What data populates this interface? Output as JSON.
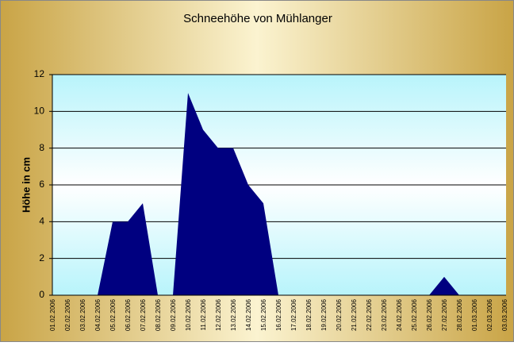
{
  "chart_data": {
    "type": "area",
    "title": "Schneehöhe von Mühlanger",
    "y_label": "Höhe in cm",
    "categories": [
      "01.02.2006",
      "02.02.2006",
      "03.02.2006",
      "04.02.2006",
      "05.02.2006",
      "06.02.2006",
      "07.02.2006",
      "08.02.2006",
      "09.02.2006",
      "10.02.2006",
      "11.02.2006",
      "12.02.2006",
      "13.02.2006",
      "14.02.2006",
      "15.02.2006",
      "16.02.2006",
      "17.02.2006",
      "18.02.2006",
      "19.02.2006",
      "20.02.2006",
      "21.02.2006",
      "22.02.2006",
      "23.02.2006",
      "24.02.2006",
      "25.02.2006",
      "26.02.2006",
      "27.02.2006",
      "28.02.2006",
      "01.03.2006",
      "02.03.2006",
      "03.03.2006"
    ],
    "values": [
      0,
      0,
      0,
      0,
      4,
      4,
      5,
      0,
      0,
      11,
      9,
      8,
      8,
      6,
      5,
      0,
      0,
      0,
      0,
      0,
      0,
      0,
      0,
      0,
      0,
      0,
      1,
      0,
      0,
      0,
      0
    ],
    "color": "#000080",
    "ylim": [
      0,
      12
    ],
    "yticks": [
      0,
      2,
      4,
      6,
      8,
      10,
      12
    ],
    "grid": true
  }
}
